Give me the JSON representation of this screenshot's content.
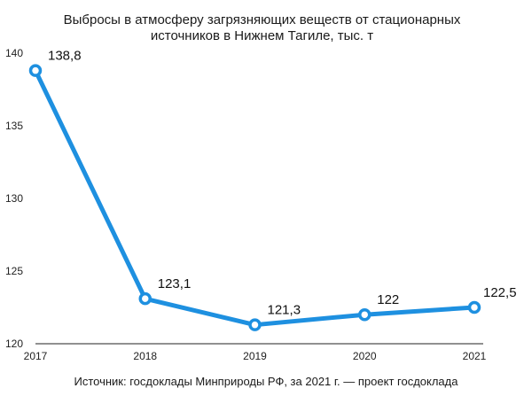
{
  "title_lines": [
    "Выбросы в атмосферу загрязняющих веществ от стационарных",
    "источников в Нижнем Тагиле, тыс. т"
  ],
  "source": "Источник: госдоклады Минприроды РФ, за 2021 г. — проект госдоклада",
  "chart_data": {
    "type": "line",
    "title": "Выбросы в атмосферу загрязняющих веществ от стационарных источников в Нижнем Тагиле, тыс. т",
    "xlabel": "",
    "ylabel": "",
    "x": [
      "2017",
      "2018",
      "2019",
      "2020",
      "2021"
    ],
    "values": [
      138.8,
      123.1,
      121.3,
      122,
      122.5
    ],
    "data_labels": [
      "138,8",
      "123,1",
      "121,3",
      "122",
      "122,5"
    ],
    "ylim": [
      120,
      140
    ],
    "yticks": [
      120,
      125,
      130,
      135,
      140
    ],
    "ytick_labels": [
      "120",
      "125",
      "130",
      "135",
      "140"
    ],
    "grid": false,
    "line_color": "#1e90e0"
  }
}
